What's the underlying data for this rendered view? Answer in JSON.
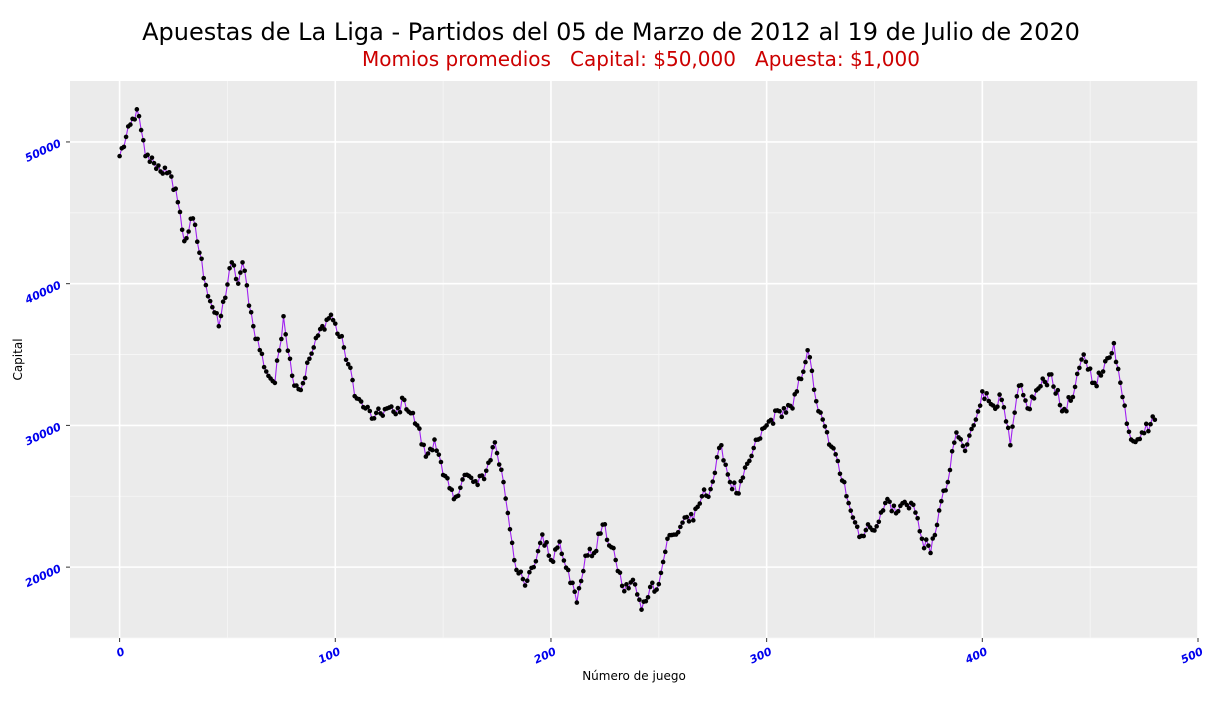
{
  "chart_data": {
    "type": "line",
    "title": "Apuestas de La Liga - Partidos del 05 de Marzo de 2012 al 19 de Julio de 2020",
    "subtitle": "Momios promedios   Capital: $50,000   Apuesta: $1,000",
    "xlabel": "Número de juego",
    "ylabel": "Capital",
    "xlim": [
      -23,
      500
    ],
    "ylim": [
      15000,
      54300
    ],
    "xticks": [
      0,
      100,
      200,
      300,
      400,
      500
    ],
    "yticks": [
      20000,
      30000,
      40000,
      50000
    ],
    "grid": true,
    "line_color": "#a020f0",
    "point_color": "#000000",
    "series": [
      {
        "anchors": [
          [
            0,
            49000
          ],
          [
            8,
            52300
          ],
          [
            12,
            49000
          ],
          [
            16,
            48500
          ],
          [
            22,
            47800
          ],
          [
            26,
            46700
          ],
          [
            30,
            43000
          ],
          [
            34,
            44600
          ],
          [
            40,
            39900
          ],
          [
            46,
            37000
          ],
          [
            52,
            41500
          ],
          [
            55,
            40000
          ],
          [
            57,
            41500
          ],
          [
            62,
            37000
          ],
          [
            68,
            33800
          ],
          [
            72,
            33000
          ],
          [
            76,
            37700
          ],
          [
            80,
            33500
          ],
          [
            84,
            32500
          ],
          [
            88,
            34700
          ],
          [
            94,
            37000
          ],
          [
            98,
            37800
          ],
          [
            104,
            35500
          ],
          [
            110,
            31900
          ],
          [
            114,
            31200
          ],
          [
            118,
            30500
          ],
          [
            124,
            31200
          ],
          [
            128,
            30800
          ],
          [
            132,
            31800
          ],
          [
            138,
            30000
          ],
          [
            142,
            27800
          ],
          [
            146,
            29000
          ],
          [
            150,
            26500
          ],
          [
            155,
            24800
          ],
          [
            160,
            26500
          ],
          [
            166,
            25800
          ],
          [
            170,
            26800
          ],
          [
            174,
            28800
          ],
          [
            178,
            26000
          ],
          [
            184,
            19800
          ],
          [
            188,
            18700
          ],
          [
            192,
            20000
          ],
          [
            196,
            22300
          ],
          [
            200,
            20500
          ],
          [
            204,
            21800
          ],
          [
            208,
            19800
          ],
          [
            212,
            17500
          ],
          [
            216,
            20800
          ],
          [
            220,
            21000
          ],
          [
            224,
            23000
          ],
          [
            230,
            20500
          ],
          [
            234,
            18300
          ],
          [
            238,
            19100
          ],
          [
            242,
            17000
          ],
          [
            246,
            18600
          ],
          [
            250,
            18800
          ],
          [
            254,
            22000
          ],
          [
            258,
            22300
          ],
          [
            262,
            23500
          ],
          [
            266,
            23300
          ],
          [
            270,
            25000
          ],
          [
            274,
            25500
          ],
          [
            279,
            28600
          ],
          [
            283,
            26000
          ],
          [
            287,
            25200
          ],
          [
            292,
            27500
          ],
          [
            296,
            29000
          ],
          [
            300,
            30000
          ],
          [
            306,
            31000
          ],
          [
            312,
            31200
          ],
          [
            319,
            35300
          ],
          [
            324,
            31000
          ],
          [
            330,
            28500
          ],
          [
            336,
            26000
          ],
          [
            340,
            23500
          ],
          [
            344,
            22200
          ],
          [
            348,
            22800
          ],
          [
            352,
            23200
          ],
          [
            356,
            24800
          ],
          [
            360,
            23800
          ],
          [
            364,
            24600
          ],
          [
            368,
            24400
          ],
          [
            372,
            22000
          ],
          [
            376,
            21000
          ],
          [
            380,
            24000
          ],
          [
            384,
            26000
          ],
          [
            388,
            29500
          ],
          [
            392,
            28200
          ],
          [
            396,
            30000
          ],
          [
            400,
            32400
          ],
          [
            404,
            31500
          ],
          [
            409,
            31800
          ],
          [
            413,
            28600
          ],
          [
            417,
            32800
          ],
          [
            421,
            31200
          ],
          [
            426,
            32600
          ],
          [
            432,
            33600
          ],
          [
            437,
            31000
          ],
          [
            442,
            32000
          ],
          [
            447,
            35000
          ],
          [
            452,
            33000
          ],
          [
            456,
            33800
          ],
          [
            461,
            35800
          ],
          [
            465,
            32000
          ],
          [
            469,
            29000
          ],
          [
            474,
            29500
          ],
          [
            480,
            30400
          ]
        ]
      }
    ]
  }
}
